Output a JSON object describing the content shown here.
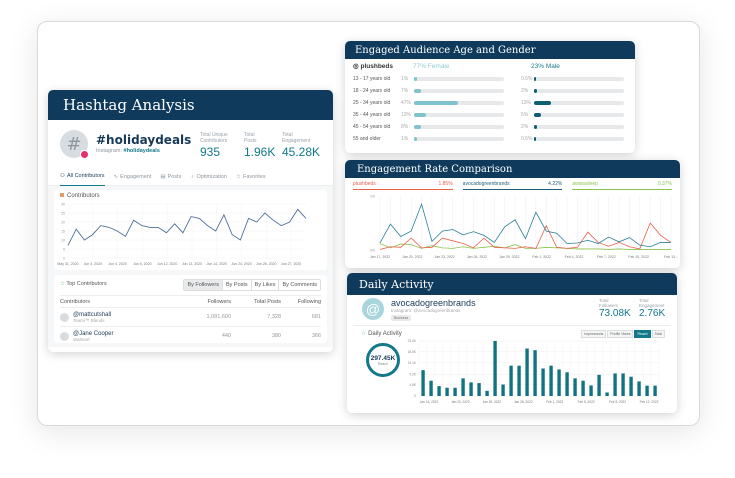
{
  "hashtag": {
    "title": "Hashtag Analysis",
    "avatar_glyph": "#",
    "name": "#holidaydeals",
    "platform_prefix": "Instagram:",
    "handle": "#holidaydeals",
    "stats": [
      {
        "label1": "Total Unique",
        "label2": "Contributors",
        "value": "935"
      },
      {
        "label1": "Total",
        "label2": "Posts",
        "value": "1.96K"
      },
      {
        "label1": "Total",
        "label2": "Engagement",
        "value": "45.28K"
      }
    ],
    "tabs": [
      {
        "label": "All Contributors",
        "icon": "users-icon",
        "active": true
      },
      {
        "label": "Engagement",
        "icon": "trend-icon",
        "active": false
      },
      {
        "label": "Posts",
        "icon": "posts-icon",
        "active": false
      },
      {
        "label": "Optimization",
        "icon": "bulb-icon",
        "active": false
      },
      {
        "label": "Favorites",
        "icon": "star-icon",
        "active": false
      }
    ],
    "top_contributors": {
      "title": "Top Contributors",
      "sort_options": [
        {
          "label": "By Followers",
          "active": true
        },
        {
          "label": "By Posts",
          "active": false
        },
        {
          "label": "By Likes",
          "active": false
        },
        {
          "label": "By Comments",
          "active": false
        }
      ],
      "columns": [
        "Contributors",
        "Followers",
        "Total Posts",
        "Following"
      ],
      "rows": [
        {
          "name": "@mattcutshall",
          "sub": "Teami™ Blends",
          "followers": "1,081,600",
          "posts": "7,328",
          "following": "681"
        },
        {
          "name": "@Jane Cooper",
          "sub": "Walmart",
          "followers": "440",
          "posts": "380",
          "following": "366"
        }
      ]
    }
  },
  "age_gender": {
    "title": "Engaged Audience Age and Gender",
    "brand": "plushbeds",
    "female_label": "77%  Female",
    "male_label": "23%  Male",
    "female_color": "#7fc4cc",
    "male_color": "#0f5f73",
    "rows": [
      {
        "label": "13 - 17 years old",
        "female": "1%",
        "female_v": 1,
        "male": "0.5%",
        "male_v": 0.5
      },
      {
        "label": "18 - 24 years old",
        "female": "7%",
        "female_v": 7,
        "male": "2%",
        "male_v": 2
      },
      {
        "label": "25 - 34 years old",
        "female": "47%",
        "female_v": 47,
        "male": "13%",
        "male_v": 13
      },
      {
        "label": "35 - 44 years old",
        "female": "13%",
        "female_v": 13,
        "male": "5%",
        "male_v": 5
      },
      {
        "label": "45 - 54 years old",
        "female": "8%",
        "female_v": 8,
        "male": "2%",
        "male_v": 2
      },
      {
        "label": "55 and older",
        "female": "1%",
        "female_v": 1,
        "male": "0.5%",
        "male_v": 0.5
      }
    ]
  },
  "engagement_rate": {
    "title": "Engagement Rate Comparison"
  },
  "daily": {
    "title": "Daily Activity",
    "avatar_glyph": "@",
    "name": "avocadogreenbrands",
    "sub": "Instagram: @avocadogreenbrands",
    "tag": "Business",
    "stats": [
      {
        "label1": "Total",
        "label2": "Followers",
        "value": "73.08K"
      },
      {
        "label1": "Total",
        "label2": "Engagement",
        "value": "2.76K"
      }
    ],
    "section_title": "Daily Activity",
    "ring_value": "297.45K",
    "ring_label": "Reach",
    "metric_tabs": [
      {
        "label": "Impressions",
        "active": false
      },
      {
        "label": "Profile Views",
        "active": false
      },
      {
        "label": "Reach",
        "active": true
      },
      {
        "label": "Total",
        "active": false
      }
    ]
  },
  "chart_data": [
    {
      "type": "line",
      "title": "Contributors",
      "x_ticks": [
        "May 31, 2020",
        "Jun 3, 2020",
        "Jun 4, 2020",
        "Jun 6, 2020",
        "Jun 12, 2020",
        "Jun 13, 2020",
        "Jun 14, 2020",
        "Jun 24, 2020",
        "Jun 26, 2020",
        "Jun 27, 2020"
      ],
      "y_ticks": [
        0,
        5,
        10,
        15,
        20,
        25,
        30
      ],
      "ylim": [
        0,
        30
      ],
      "series": [
        {
          "name": "Contributors",
          "color": "#4f6f96",
          "values": [
            7,
            16,
            10,
            13,
            18,
            17,
            15,
            12,
            21,
            18,
            17,
            17,
            14,
            19,
            14,
            23,
            22,
            18,
            15,
            24,
            13,
            10,
            22,
            20,
            25,
            21,
            18,
            20,
            27,
            22
          ]
        }
      ]
    },
    {
      "type": "line",
      "title": "Engagement Rate Comparison",
      "x_ticks": [
        "Jan 17, 2022",
        "Jan 20, 2022",
        "Jan 23, 2022",
        "Jan 26, 2022",
        "Jan 29, 2022",
        "Feb 1, 2022",
        "Feb 4, 2022",
        "Feb 7, 2022",
        "Feb 10, 2022",
        "Feb 13..."
      ],
      "y_ticks": [
        "0%",
        "1%"
      ],
      "ylim": [
        0,
        1
      ],
      "series": [
        {
          "name": "plushbeds",
          "value_label": "1.85%",
          "color": "#e8604c",
          "values": [
            0.01,
            0.06,
            0.05,
            0.22,
            0.04,
            0.05,
            0.22,
            0.17,
            0.12,
            0.04,
            0.22,
            0.05,
            0.04,
            0.03,
            0.06,
            0.03,
            0.45,
            0.05,
            0.03,
            0.05,
            0.33,
            0.14,
            0.07,
            0.14,
            0.06,
            0.02,
            0.5,
            0.27,
            0.14
          ]
        },
        {
          "name": "avocadogreenbrands",
          "value_label": "4.22%",
          "color": "#2a7f95",
          "values": [
            0.13,
            0.48,
            0.25,
            0.35,
            0.85,
            0.16,
            0.35,
            0.38,
            0.28,
            0.34,
            0.27,
            0.14,
            0.43,
            0.56,
            0.21,
            0.7,
            0.35,
            0.31,
            0.12,
            0.13,
            0.18,
            0.12,
            0.24,
            0.15,
            0.23,
            0.09,
            0.06,
            0.14,
            0.14
          ]
        },
        {
          "name": "awarasleep",
          "value_label": "0.37%",
          "color": "#8bc34a",
          "values": [
            0.12,
            0.04,
            0.11,
            0.1,
            0.03,
            0.08,
            0.04,
            0.03,
            0.06,
            0.03,
            0.05,
            0.07,
            0.04,
            0.1,
            0.03,
            0.03,
            0.05,
            0.04,
            0.03,
            0.02,
            0.02,
            0.02,
            0.01,
            0.02,
            0.01,
            0.01,
            0.01,
            0.01,
            0.01
          ]
        }
      ]
    },
    {
      "type": "bar",
      "title": "Daily Activity - Reach",
      "x_ticks": [
        "Jan 16, 2022",
        "Jan 20, 2022",
        "Jan 25, 2022",
        "Jan 28, 2022",
        "Feb 1, 2022",
        "Feb 5, 2022",
        "Feb 9, 2022",
        "Feb 12, 2022"
      ],
      "y_ticks": [
        "0",
        "4.8K",
        "9.2K",
        "14.1K",
        "18.8K",
        "23.4K"
      ],
      "ylim": [
        0,
        23.4
      ],
      "color": "#12727f",
      "values": [
        11,
        6.5,
        4.2,
        3.5,
        3.5,
        7.5,
        5.8,
        5.5,
        2.2,
        23.4,
        4.9,
        12.9,
        12.9,
        20.2,
        19.5,
        11.7,
        12.9,
        11.3,
        10.1,
        7.5,
        6.5,
        4.5,
        9,
        1.5,
        9.6,
        9.6,
        8.2,
        6.2,
        4.4,
        4.4
      ]
    }
  ]
}
